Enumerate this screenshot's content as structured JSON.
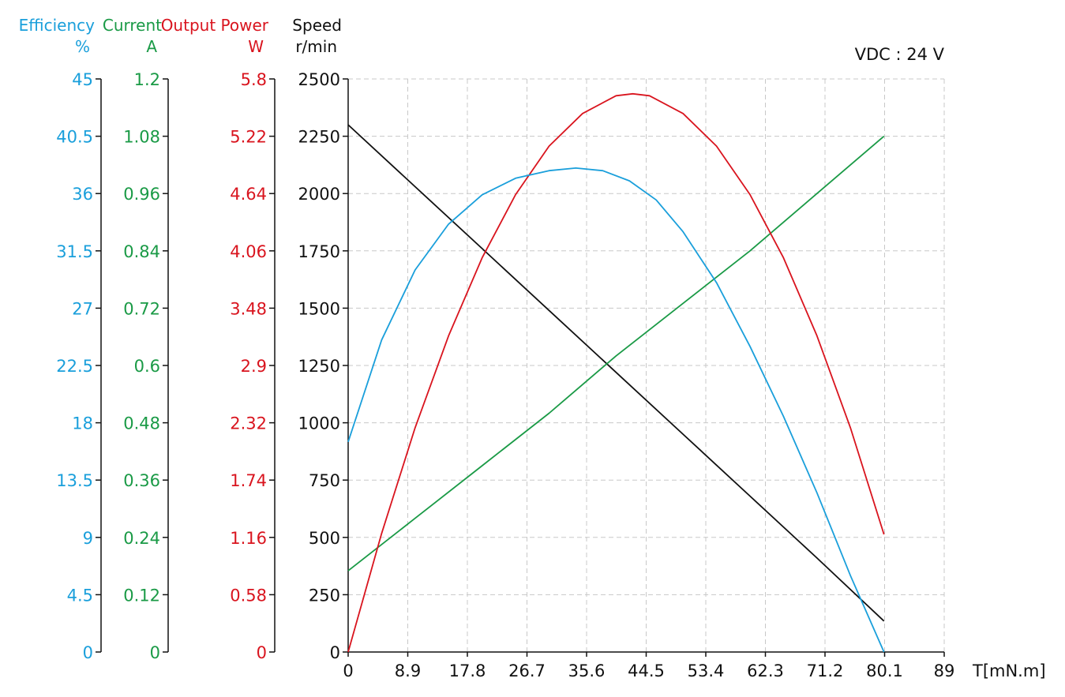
{
  "chart_data": {
    "type": "line",
    "annotation": "VDC : 24 V",
    "xlabel": "T[mN.m]",
    "xlim": [
      0,
      89
    ],
    "x_ticks": [
      "0",
      "8.9",
      "17.8",
      "26.7",
      "35.6",
      "44.5",
      "53.4",
      "62.3",
      "71.2",
      "80.1",
      "89"
    ],
    "colors": {
      "efficiency": "#1a9fdb",
      "current": "#1a9a46",
      "power": "#d9141e",
      "speed": "#111111"
    },
    "y_axes": [
      {
        "key": "efficiency",
        "title": "Efficiency",
        "unit": "%",
        "color": "#1a9fdb",
        "ylim": [
          0,
          45
        ],
        "ticks": [
          "0",
          "4.5",
          "9",
          "13.5",
          "18",
          "22.5",
          "27",
          "31.5",
          "36",
          "40.5",
          "45"
        ]
      },
      {
        "key": "current",
        "title": "Current",
        "unit": "A",
        "color": "#1a9a46",
        "ylim": [
          0,
          1.2
        ],
        "ticks": [
          "0",
          "0.12",
          "0.24",
          "0.36",
          "0.48",
          "0.6",
          "0.72",
          "0.84",
          "0.96",
          "1.08",
          "1.2"
        ]
      },
      {
        "key": "power",
        "title": "Output Power",
        "unit": "W",
        "color": "#d9141e",
        "ylim": [
          0,
          5.8
        ],
        "ticks": [
          "0",
          "0.58",
          "1.16",
          "1.74",
          "2.32",
          "2.9",
          "3.48",
          "4.06",
          "4.64",
          "5.22",
          "5.8"
        ]
      },
      {
        "key": "speed",
        "title": "Speed",
        "unit": "r/min",
        "color": "#111111",
        "ylim": [
          0,
          2500
        ],
        "ticks": [
          "0",
          "250",
          "500",
          "750",
          "1000",
          "1250",
          "1500",
          "1750",
          "2000",
          "2250",
          "2500"
        ]
      }
    ],
    "series": [
      {
        "key": "speed",
        "axis": "speed",
        "x": [
          0,
          10,
          20,
          30,
          40,
          50,
          60,
          70,
          80
        ],
        "values": [
          2300,
          2030,
          1760,
          1490,
          1220,
          950,
          680,
          410,
          135
        ]
      },
      {
        "key": "current",
        "axis": "current",
        "x": [
          0,
          10,
          20,
          30,
          40,
          50,
          60,
          70,
          80
        ],
        "values": [
          0.17,
          0.28,
          0.39,
          0.5,
          0.62,
          0.73,
          0.84,
          0.96,
          1.08
        ]
      },
      {
        "key": "power",
        "axis": "power",
        "x": [
          0,
          5,
          10,
          15,
          20,
          25,
          30,
          35,
          40,
          42.5,
          45,
          50,
          55,
          60,
          65,
          70,
          75,
          80
        ],
        "values": [
          0,
          1.2,
          2.27,
          3.2,
          3.99,
          4.63,
          5.12,
          5.45,
          5.63,
          5.65,
          5.63,
          5.45,
          5.12,
          4.63,
          3.99,
          3.2,
          2.27,
          1.19
        ]
      },
      {
        "key": "efficiency",
        "axis": "efficiency",
        "x": [
          0,
          5,
          10,
          15,
          20,
          25,
          30,
          34,
          38,
          42,
          46,
          50,
          55,
          60,
          65,
          70,
          75,
          80
        ],
        "values": [
          16.5,
          24.5,
          30.0,
          33.6,
          35.9,
          37.2,
          37.8,
          38.0,
          37.8,
          37.0,
          35.5,
          33.0,
          29.0,
          24.0,
          18.5,
          12.5,
          6.0,
          0
        ]
      }
    ]
  }
}
